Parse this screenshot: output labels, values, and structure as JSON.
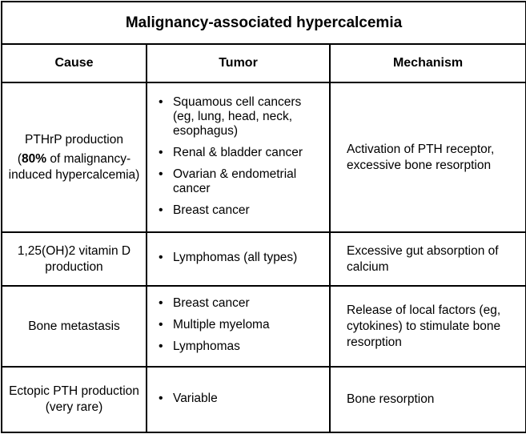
{
  "title": "Malignancy-associated hypercalcemia",
  "headers": {
    "cause": "Cause",
    "tumor": "Tumor",
    "mechanism": "Mechanism"
  },
  "rows": [
    {
      "cause_main": "PTHrP production",
      "cause_bold": "80%",
      "cause_open": "(",
      "cause_rest": " of malignancy-induced hypercalcemia)",
      "tumors": [
        "Squamous cell cancers (eg, lung, head, neck, esophagus)",
        "Renal & bladder cancer",
        "Ovarian & endometrial cancer",
        "Breast cancer"
      ],
      "mechanism": "Activation of PTH receptor, excessive bone resorption"
    },
    {
      "cause": "1,25(OH)2 vitamin D production",
      "tumors": [
        "Lymphomas (all types)"
      ],
      "mechanism": "Excessive gut absorption of calcium"
    },
    {
      "cause": "Bone metastasis",
      "tumors": [
        "Breast cancer",
        "Multiple myeloma",
        "Lymphomas"
      ],
      "mechanism": "Release of local factors (eg, cytokines) to stimulate bone resorption"
    },
    {
      "cause": "Ectopic PTH production (very rare)",
      "tumors": [
        "Variable"
      ],
      "mechanism": "Bone resorption"
    }
  ]
}
